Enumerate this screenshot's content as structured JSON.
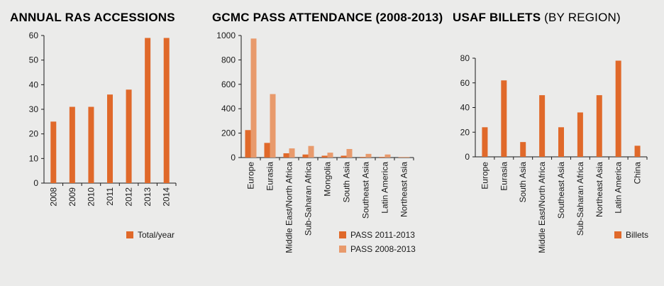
{
  "colors": {
    "primary": "#e0692a",
    "light": "#e89a6c",
    "axis": "#1a1a1a",
    "background": "#ebebea"
  },
  "chart_data": [
    {
      "type": "bar",
      "title": "ANNUAL RAS ACCESSIONS",
      "title_suffix": "",
      "categories": [
        "2008",
        "2009",
        "2010",
        "2011",
        "2012",
        "2013",
        "2014"
      ],
      "series": [
        {
          "name": "Total/year",
          "values": [
            25,
            31,
            31,
            36,
            38,
            59,
            59
          ]
        }
      ],
      "ylim": [
        0,
        60
      ],
      "yticks": [
        "0",
        "10",
        "20",
        "30",
        "40",
        "50",
        "60"
      ],
      "grid": false,
      "legend": "bottom-right"
    },
    {
      "type": "bar",
      "title": "GCMC PASS ATTENDANCE (2008-2013)",
      "title_suffix": "",
      "categories": [
        "Europe",
        "Eurasia",
        "Middle East/North Africa",
        "Sub-Saharan Africa",
        "Mongolia",
        "South Asia",
        "Southeast Asia",
        "Latin America",
        "Northeast Asia"
      ],
      "series": [
        {
          "name": "PASS 2011-2013",
          "values": [
            225,
            120,
            35,
            25,
            15,
            15,
            5,
            5,
            3
          ]
        },
        {
          "name": "PASS 2008-2013",
          "values": [
            975,
            520,
            75,
            95,
            40,
            70,
            30,
            25,
            5
          ]
        }
      ],
      "ylim": [
        0,
        1000
      ],
      "yticks": [
        "0",
        "200",
        "400",
        "600",
        "800",
        "1000"
      ],
      "grid": false,
      "legend": "bottom-right"
    },
    {
      "type": "bar",
      "title": "USAF BILLETS",
      "title_suffix": " (BY REGION)",
      "categories": [
        "Europe",
        "Eurasia",
        "South Asia",
        "Middle East/North Africa",
        "Southeast Asia",
        "Sub-Saharan Africa",
        "Northeast Asia",
        "Latin America",
        "China"
      ],
      "series": [
        {
          "name": "Billets",
          "values": [
            24,
            62,
            12,
            50,
            24,
            36,
            50,
            78,
            9
          ]
        }
      ],
      "ylim": [
        0,
        80
      ],
      "yticks": [
        "0",
        "20",
        "40",
        "60",
        "80"
      ],
      "grid": false,
      "legend": "bottom-right"
    }
  ]
}
